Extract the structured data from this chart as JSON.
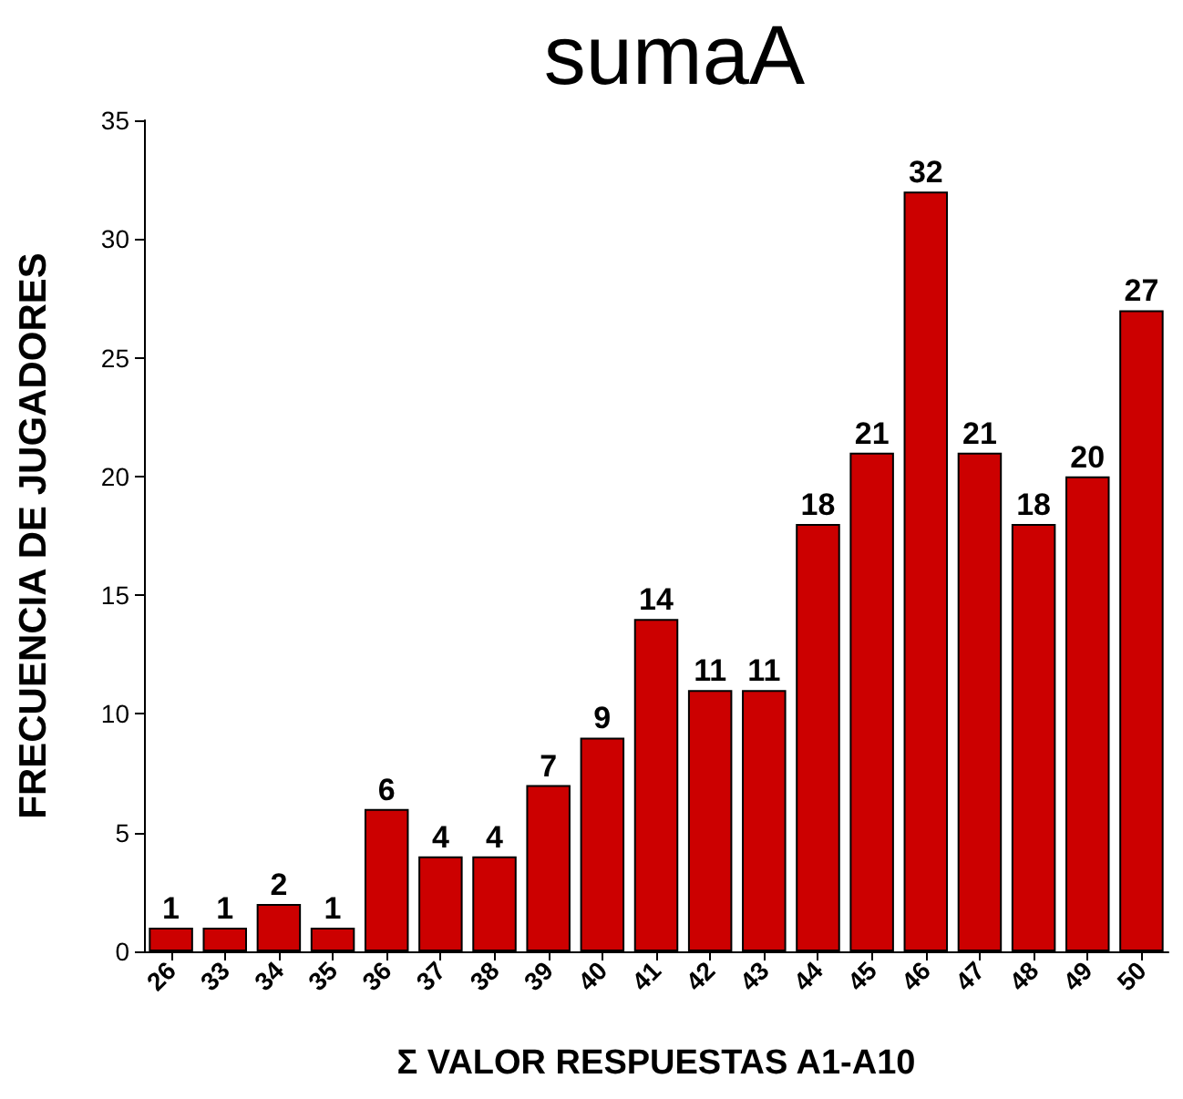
{
  "chart_data": {
    "type": "bar",
    "title": "sumaA",
    "xlabel": "Σ VALOR RESPUESTAS A1-A10",
    "ylabel": "FRECUENCIA DE JUGADORES",
    "categories": [
      "26",
      "33",
      "34",
      "35",
      "36",
      "37",
      "38",
      "39",
      "40",
      "41",
      "42",
      "43",
      "44",
      "45",
      "46",
      "47",
      "48",
      "49",
      "50"
    ],
    "values": [
      1,
      1,
      2,
      1,
      6,
      4,
      4,
      7,
      9,
      14,
      11,
      11,
      18,
      21,
      32,
      21,
      18,
      20,
      27
    ],
    "color": "#cc0000",
    "ylim": [
      0,
      35
    ],
    "yticks": [
      0,
      5,
      10,
      15,
      20,
      25,
      30,
      35
    ],
    "data_labels": true
  }
}
